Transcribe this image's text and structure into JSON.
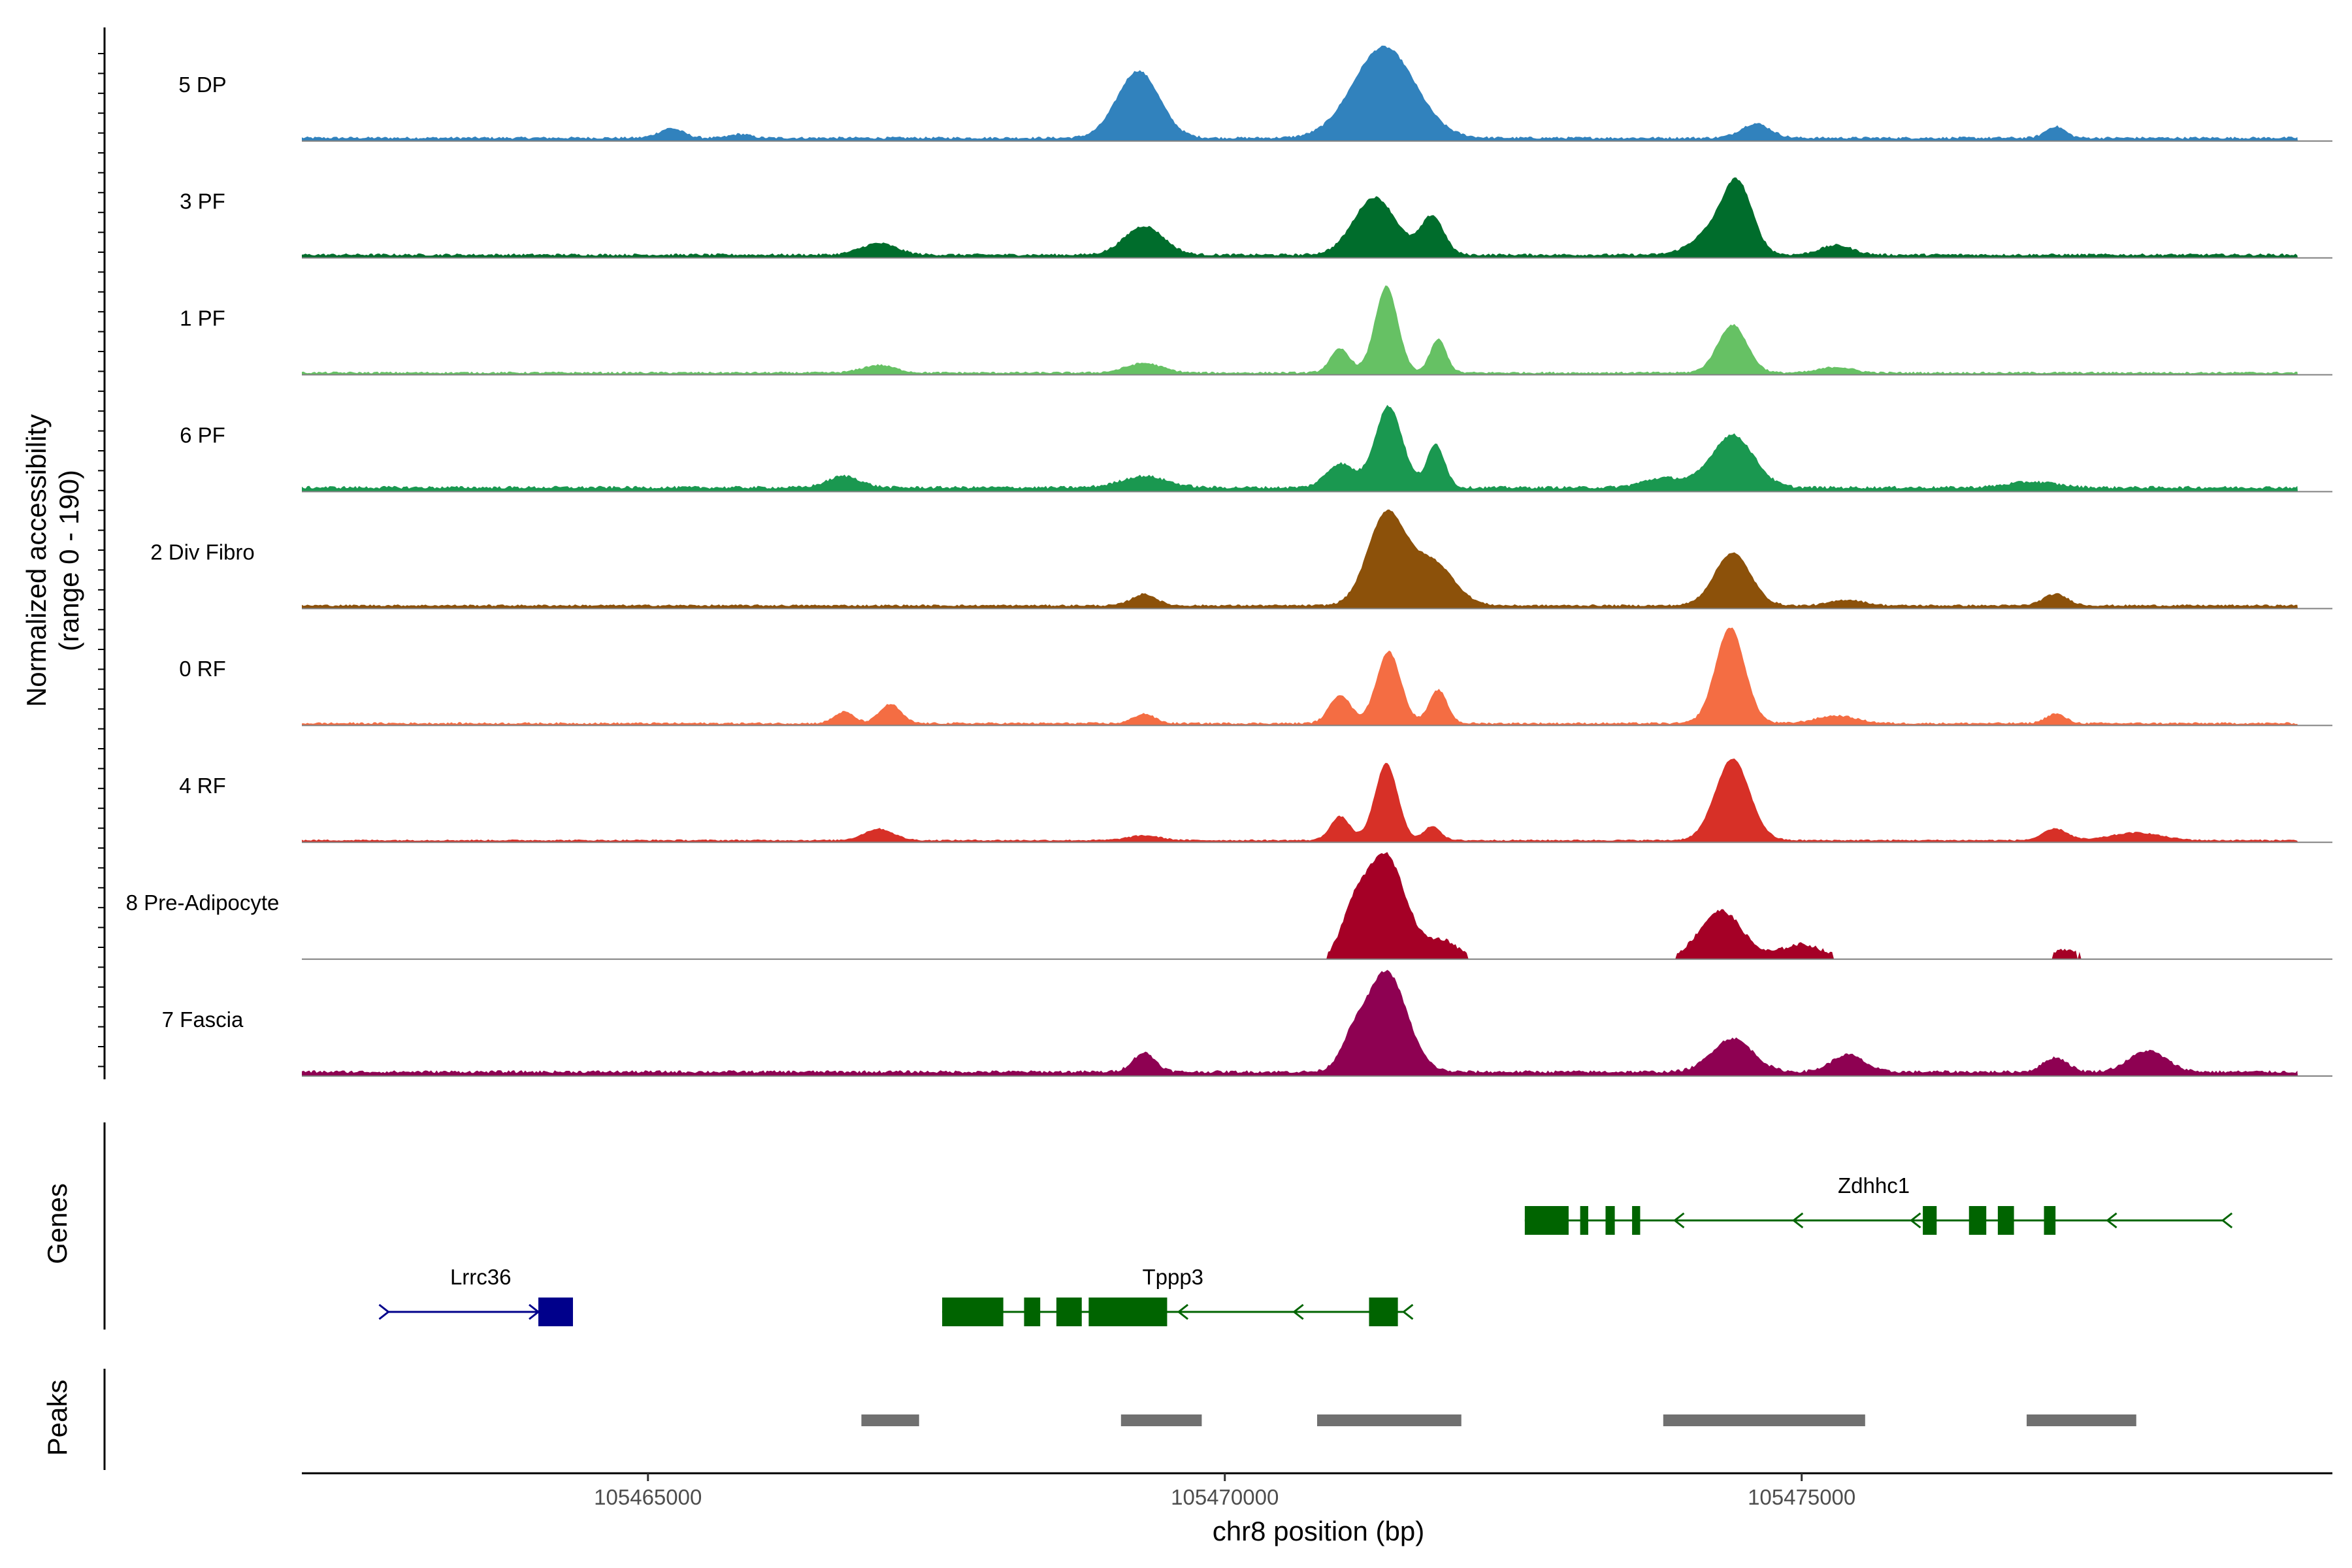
{
  "chart_data": {
    "type": "area",
    "title": "",
    "xlabel": "chr8 position (bp)",
    "ylabel": "Normalized accessibility",
    "ylabel_sub": "(range 0 - 190)",
    "ylim": [
      0,
      190
    ],
    "xlim": [
      105462000,
      105479600
    ],
    "x_ticks": [
      105465000,
      105470000,
      105475000
    ],
    "x_tick_labels": [
      "105465000",
      "105470000",
      "105475000"
    ],
    "series": [
      {
        "name": "5 DP",
        "color": "#3182bd",
        "baseline": 3,
        "noise": 2.5,
        "floor_gaps": false,
        "peaks": [
          [
            105465200,
            10,
            150
          ],
          [
            105465800,
            4,
            120
          ],
          [
            105469250,
            70,
            260
          ],
          [
            105471380,
            95,
            380
          ],
          [
            105474600,
            15,
            180
          ],
          [
            105477200,
            12,
            120
          ]
        ]
      },
      {
        "name": "3 PF",
        "color": "#006d2c",
        "baseline": 3,
        "noise": 2.5,
        "floor_gaps": false,
        "peaks": [
          [
            105467000,
            12,
            220
          ],
          [
            105469300,
            30,
            240
          ],
          [
            105471300,
            60,
            260
          ],
          [
            105471800,
            40,
            140
          ],
          [
            105474250,
            25,
            260
          ],
          [
            105474450,
            65,
            180
          ],
          [
            105475300,
            10,
            200
          ]
        ]
      },
      {
        "name": "1 PF",
        "color": "#66c164",
        "baseline": 2,
        "noise": 2.0,
        "floor_gaps": false,
        "peaks": [
          [
            105467000,
            8,
            200
          ],
          [
            105469300,
            10,
            220
          ],
          [
            105471000,
            25,
            120
          ],
          [
            105471400,
            90,
            140
          ],
          [
            105471850,
            35,
            100
          ],
          [
            105474400,
            50,
            180
          ],
          [
            105475300,
            6,
            200
          ]
        ]
      },
      {
        "name": "6 PF",
        "color": "#1a9850",
        "baseline": 4,
        "noise": 3.0,
        "floor_gaps": false,
        "peaks": [
          [
            105466700,
            12,
            200
          ],
          [
            105469300,
            12,
            280
          ],
          [
            105471000,
            25,
            170
          ],
          [
            105471420,
            85,
            170
          ],
          [
            105471830,
            45,
            110
          ],
          [
            105473800,
            10,
            250
          ],
          [
            105474400,
            55,
            260
          ],
          [
            105477000,
            6,
            300
          ]
        ]
      },
      {
        "name": "2 Div Fibro",
        "color": "#8c510a",
        "baseline": 3,
        "noise": 2.0,
        "floor_gaps": false,
        "peaks": [
          [
            105469300,
            12,
            150
          ],
          [
            105471400,
            95,
            230
          ],
          [
            105471800,
            45,
            260
          ],
          [
            105474400,
            55,
            220
          ],
          [
            105475400,
            6,
            200
          ],
          [
            105477200,
            12,
            150
          ]
        ]
      },
      {
        "name": "0 RF",
        "color": "#f46d43",
        "baseline": 2,
        "noise": 2.0,
        "floor_gaps": false,
        "peaks": [
          [
            105466700,
            12,
            120
          ],
          [
            105467100,
            20,
            130
          ],
          [
            105469300,
            10,
            130
          ],
          [
            105471000,
            30,
            130
          ],
          [
            105471420,
            75,
            150
          ],
          [
            105471850,
            35,
            110
          ],
          [
            105474380,
            100,
            180
          ],
          [
            105475300,
            8,
            250
          ],
          [
            105477200,
            10,
            120
          ]
        ]
      },
      {
        "name": "4 RF",
        "color": "#d73027",
        "baseline": 2,
        "noise": 1.5,
        "floor_gaps": false,
        "peaks": [
          [
            105467000,
            12,
            180
          ],
          [
            105469300,
            5,
            200
          ],
          [
            105471000,
            25,
            120
          ],
          [
            105471400,
            80,
            140
          ],
          [
            105471800,
            15,
            100
          ],
          [
            105474400,
            85,
            210
          ],
          [
            105477200,
            12,
            150
          ],
          [
            105477900,
            8,
            300
          ]
        ]
      },
      {
        "name": "8 Pre-Adipocyte",
        "color": "#a50026",
        "baseline": 0,
        "noise": 4.0,
        "floor_gaps": true,
        "peaks": [
          [
            105471100,
            30,
            140
          ],
          [
            105471380,
            110,
            260
          ],
          [
            105471900,
            18,
            180
          ],
          [
            105474300,
            50,
            260
          ],
          [
            105475000,
            15,
            250
          ],
          [
            105477300,
            10,
            150
          ]
        ]
      },
      {
        "name": "7 Fascia",
        "color": "#8e0152",
        "baseline": 4,
        "noise": 3.0,
        "floor_gaps": false,
        "peaks": [
          [
            105469300,
            20,
            140
          ],
          [
            105471100,
            25,
            150
          ],
          [
            105471400,
            105,
            250
          ],
          [
            105474400,
            35,
            250
          ],
          [
            105475400,
            18,
            200
          ],
          [
            105477200,
            15,
            150
          ],
          [
            105478000,
            22,
            230
          ]
        ]
      }
    ],
    "genes": [
      {
        "name": "Lrrc36",
        "strand": "+",
        "color": "#00008b",
        "start": 105462750,
        "end": 105464350,
        "row": 1,
        "exons": [
          [
            105464050,
            105464350
          ]
        ],
        "arrows": [
          105464050
        ]
      },
      {
        "name": "Tppp3",
        "strand": "-",
        "color": "#006400",
        "start": 105467550,
        "end": 105471550,
        "row": 1,
        "exons": [
          [
            105467550,
            105468080
          ],
          [
            105468260,
            105468400
          ],
          [
            105468540,
            105468760
          ],
          [
            105468820,
            105469500
          ],
          [
            105471250,
            105471500
          ]
        ],
        "arrows": [
          105469600,
          105470600
        ]
      },
      {
        "name": "Zdhhc1",
        "strand": "-",
        "color": "#006400",
        "start": 105472600,
        "end": 105478650,
        "row": 0,
        "exons": [
          [
            105472600,
            105472980
          ],
          [
            105473080,
            105473150
          ],
          [
            105473300,
            105473380
          ],
          [
            105473530,
            105473600
          ],
          [
            105476050,
            105476170
          ],
          [
            105476450,
            105476600
          ],
          [
            105476700,
            105476840
          ],
          [
            105477100,
            105477200
          ]
        ],
        "arrows": [
          105473900,
          105474930,
          105475950,
          105477650
        ]
      }
    ],
    "peaks": [
      {
        "start": 105466850,
        "end": 105467350
      },
      {
        "start": 105469100,
        "end": 105469800
      },
      {
        "start": 105470800,
        "end": 105472050
      },
      {
        "start": 105473800,
        "end": 105475550
      },
      {
        "start": 105476950,
        "end": 105477900
      }
    ],
    "panel_titles": {
      "genes": "Genes",
      "peaks": "Peaks"
    }
  }
}
